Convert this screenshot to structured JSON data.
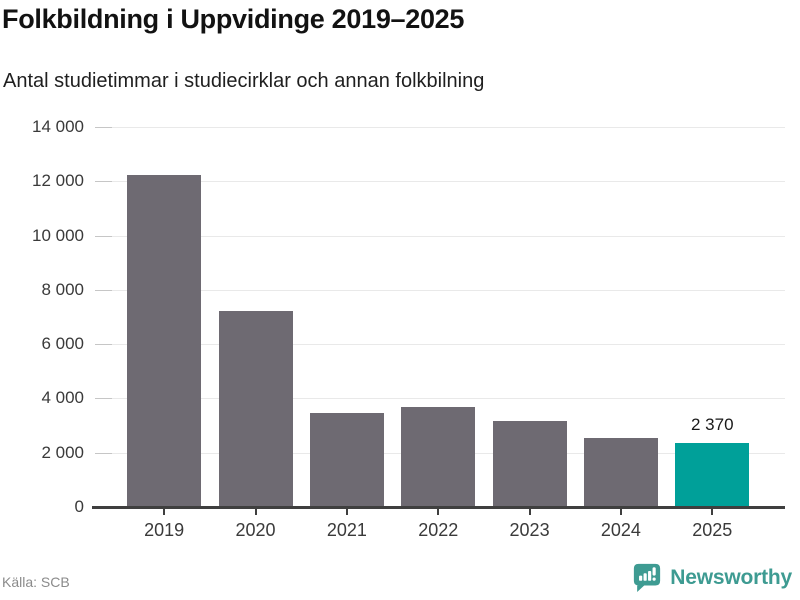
{
  "header": {
    "title": "Folkbildning i Uppvidinge 2019–2025",
    "subtitle": "Antal studietimmar i studiecirklar och annan folkbilning"
  },
  "footer": {
    "source": "Källa: SCB",
    "brand_name": "Newsworthy",
    "brand_icon": "bar-chart-speech-bubble-icon"
  },
  "colors": {
    "bar": "#6e6a72",
    "highlight": "#00a099",
    "brand": "#3e9b92",
    "axis": "#3f3f3f",
    "grid": "#e9e9e9",
    "tick": "#c6c6c6",
    "title_text": "#121212",
    "label_text": "#3a3a3a"
  },
  "chart_data": {
    "type": "bar",
    "title": "Folkbildning i Uppvidinge 2019–2025",
    "subtitle": "Antal studietimmar i studiecirklar och annan folkbilning",
    "source": "Källa: SCB",
    "categories": [
      "2019",
      "2020",
      "2021",
      "2022",
      "2023",
      "2024",
      "2025"
    ],
    "values": [
      12250,
      7230,
      3470,
      3700,
      3170,
      2530,
      2370
    ],
    "highlight_index": 6,
    "value_label": {
      "index": 6,
      "text": "2 370"
    },
    "ylim": [
      0,
      14000
    ],
    "ytick_step": 2000,
    "ytick_labels": [
      "0",
      "2 000",
      "4 000",
      "6 000",
      "8 000",
      "10 000",
      "12 000",
      "14 000"
    ],
    "xlabel": "",
    "ylabel": "",
    "grid": true,
    "legend": null
  }
}
